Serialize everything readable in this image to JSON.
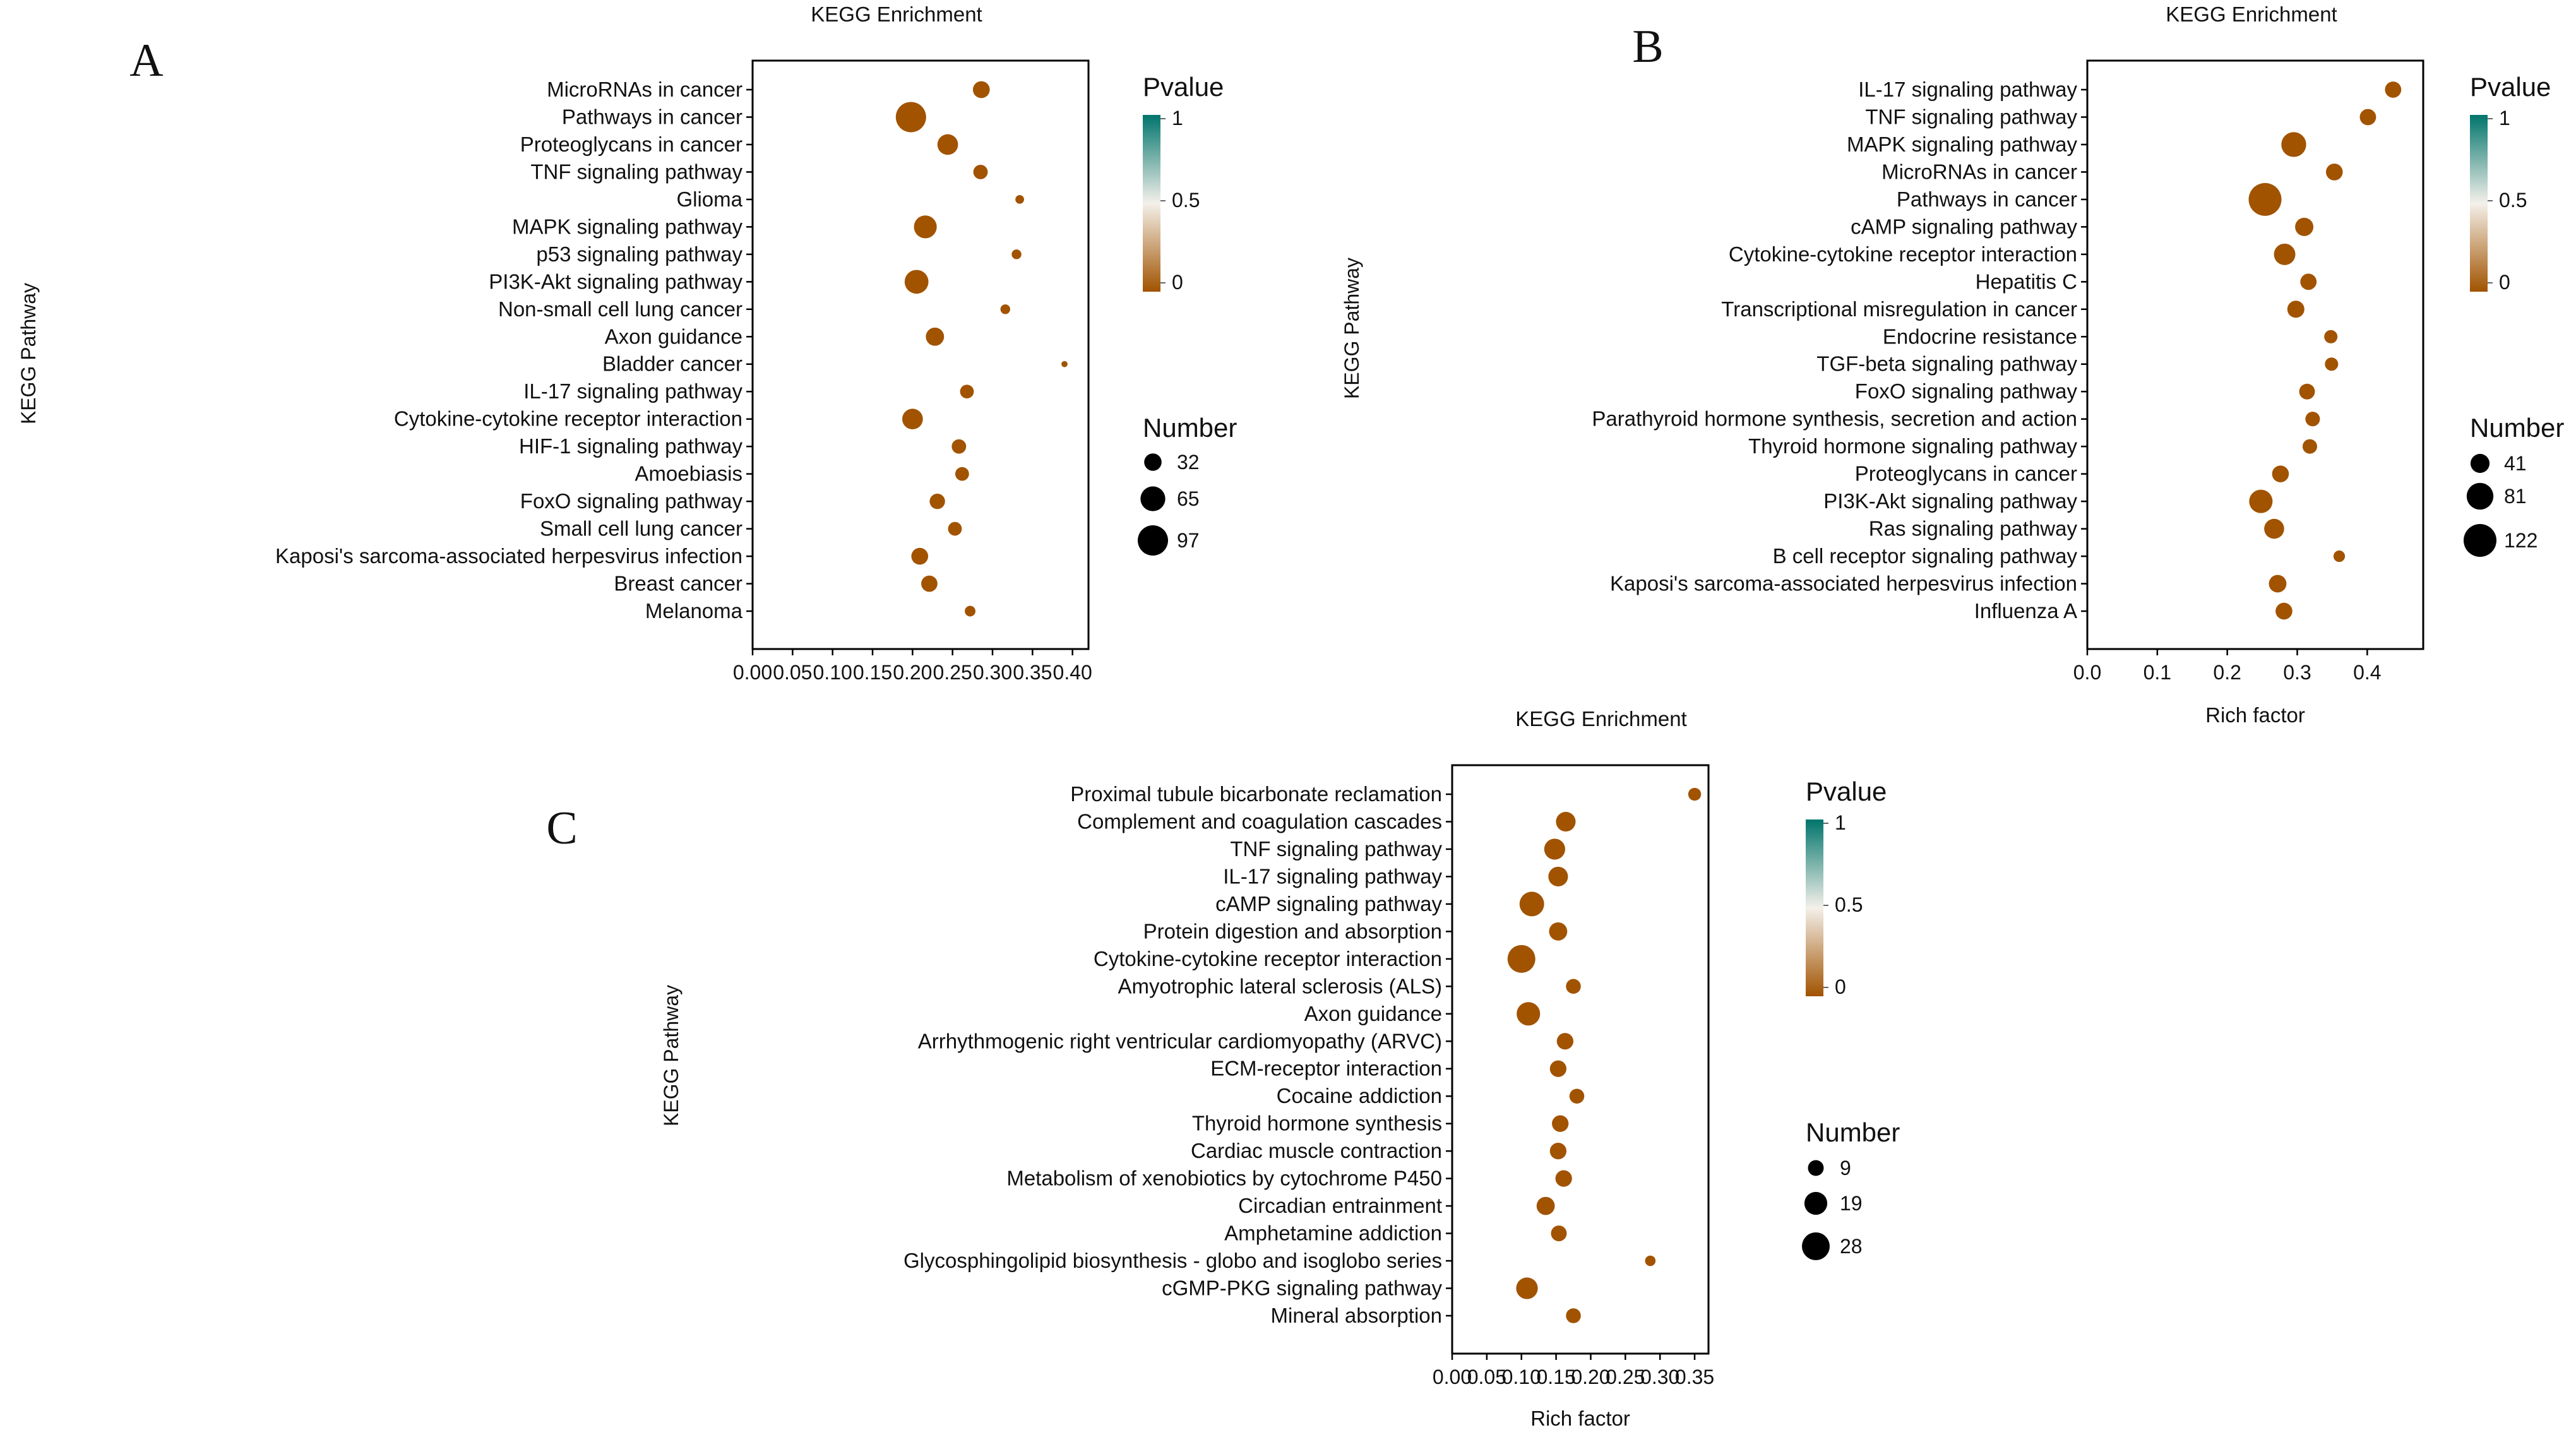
{
  "colors": {
    "low": "#a15300",
    "mid": "#f4f0ea",
    "high": "#00756c",
    "axis": "#000000"
  },
  "chart_data": [
    {
      "id": "A",
      "type": "scatter",
      "panel_label": "A",
      "title": "KEGG Enrichment",
      "xlabel": "",
      "ylabel": "KEGG Pathway",
      "xlim": [
        0,
        0.42
      ],
      "xticks": [
        0.0,
        0.05,
        0.1,
        0.15,
        0.2,
        0.25,
        0.3,
        0.35,
        0.4
      ],
      "xtick_labels": [
        "0.00",
        "0.05",
        "0.10",
        "0.15",
        "0.20",
        "0.25",
        "0.30",
        "0.35",
        "0.40"
      ],
      "categories": [
        "MicroRNAs in cancer",
        "Pathways in cancer",
        "Proteoglycans in cancer",
        "TNF signaling pathway",
        "Glioma",
        "MAPK signaling pathway",
        "p53 signaling pathway",
        "PI3K-Akt signaling pathway",
        "Non-small cell lung cancer",
        "Axon guidance",
        "Bladder cancer",
        "IL-17 signaling pathway",
        "Cytokine-cytokine receptor interaction",
        "HIF-1 signaling pathway",
        "Amoebiasis",
        "FoxO signaling pathway",
        "Small cell lung cancer",
        "Kaposi's sarcoma-associated herpesvirus infection",
        "Breast cancer",
        "Melanoma"
      ],
      "rich_factor": [
        0.286,
        0.198,
        0.244,
        0.285,
        0.334,
        0.216,
        0.33,
        0.205,
        0.316,
        0.228,
        0.39,
        0.268,
        0.2,
        0.258,
        0.262,
        0.231,
        0.253,
        0.209,
        0.221,
        0.272
      ],
      "number": [
        30,
        97,
        45,
        22,
        8,
        55,
        10,
        60,
        10,
        35,
        4,
        20,
        45,
        22,
        20,
        25,
        20,
        30,
        28,
        12
      ],
      "pvalue": [
        0,
        0,
        0,
        0,
        0,
        0,
        0,
        0,
        0,
        0,
        0,
        0,
        0,
        0,
        0,
        0,
        0,
        0,
        0,
        0
      ],
      "legend": {
        "color_title": "Pvalue",
        "color_ticks": [
          "1",
          "0.5",
          "0"
        ],
        "size_title": "Number",
        "size_values": [
          32,
          65,
          97
        ],
        "size_labels": [
          "32",
          "65",
          "97"
        ]
      }
    },
    {
      "id": "B",
      "type": "scatter",
      "panel_label": "B",
      "title": "KEGG Enrichment",
      "xlabel": "Rich factor",
      "ylabel": "KEGG Pathway",
      "xlim": [
        0,
        0.48
      ],
      "xticks": [
        0.0,
        0.1,
        0.2,
        0.3,
        0.4
      ],
      "xtick_labels": [
        "0.0",
        "0.1",
        "0.2",
        "0.3",
        "0.4"
      ],
      "categories": [
        "IL-17 signaling pathway",
        "TNF signaling pathway",
        "MAPK signaling pathway",
        "MicroRNAs in cancer",
        "Pathways in cancer",
        "cAMP signaling pathway",
        "Cytokine-cytokine receptor interaction",
        "Hepatitis C",
        "Transcriptional misregulation in cancer",
        "Endocrine resistance",
        "TGF-beta signaling pathway",
        "FoxO signaling pathway",
        "Parathyroid hormone synthesis, secretion and action",
        "Thyroid hormone signaling pathway",
        "Proteoglycans in cancer",
        "PI3K-Akt signaling pathway",
        "Ras signaling pathway",
        "B cell receptor signaling pathway",
        "Kaposi's sarcoma-associated herpesvirus infection",
        "Influenza A"
      ],
      "rich_factor": [
        0.437,
        0.401,
        0.295,
        0.353,
        0.254,
        0.31,
        0.282,
        0.316,
        0.298,
        0.348,
        0.349,
        0.314,
        0.322,
        0.318,
        0.276,
        0.248,
        0.267,
        0.36,
        0.272,
        0.281
      ],
      "number": [
        30,
        30,
        70,
        32,
        122,
        38,
        52,
        30,
        33,
        20,
        20,
        28,
        24,
        24,
        32,
        62,
        45,
        15,
        35,
        32
      ],
      "pvalue": [
        0,
        0,
        0,
        0,
        0,
        0,
        0,
        0,
        0,
        0,
        0,
        0,
        0,
        0,
        0,
        0,
        0,
        0,
        0,
        0
      ],
      "legend": {
        "color_title": "Pvalue",
        "color_ticks": [
          "1",
          "0.5",
          "0"
        ],
        "size_title": "Number",
        "size_values": [
          41,
          81,
          122
        ],
        "size_labels": [
          "41",
          "81",
          "122"
        ]
      }
    },
    {
      "id": "C",
      "type": "scatter",
      "panel_label": "C",
      "title": "KEGG Enrichment",
      "xlabel": "Rich factor",
      "ylabel": "KEGG Pathway",
      "xlim": [
        0,
        0.37
      ],
      "xticks": [
        0.0,
        0.05,
        0.1,
        0.15,
        0.2,
        0.25,
        0.3,
        0.35
      ],
      "xtick_labels": [
        "0.00",
        "0.05",
        "0.10",
        "0.15",
        "0.20",
        "0.25",
        "0.30",
        "0.35"
      ],
      "categories": [
        "Proximal tubule bicarbonate reclamation",
        "Complement and coagulation cascades",
        "TNF signaling pathway",
        "IL-17 signaling pathway",
        "cAMP signaling pathway",
        "Protein digestion and absorption",
        "Cytokine-cytokine receptor interaction",
        "Amyotrophic lateral sclerosis (ALS)",
        "Axon guidance",
        "Arrhythmogenic right ventricular cardiomyopathy (ARVC)",
        "ECM-receptor interaction",
        "Cocaine addiction",
        "Thyroid hormone synthesis",
        "Cardiac muscle contraction",
        "Metabolism of xenobiotics by cytochrome P450",
        "Circadian entrainment",
        "Amphetamine addiction",
        "Glycosphingolipid biosynthesis - globo and isoglobo series",
        "cGMP-PKG signaling pathway",
        "Mineral absorption"
      ],
      "rich_factor": [
        0.35,
        0.164,
        0.148,
        0.153,
        0.115,
        0.153,
        0.1,
        0.175,
        0.11,
        0.163,
        0.153,
        0.18,
        0.156,
        0.153,
        0.161,
        0.135,
        0.154,
        0.286,
        0.108,
        0.175
      ],
      "number": [
        6,
        14,
        16,
        14,
        22,
        12,
        28,
        8,
        20,
        10,
        10,
        8,
        10,
        10,
        10,
        12,
        9,
        4,
        17,
        8
      ],
      "pvalue": [
        0,
        0,
        0,
        0,
        0,
        0,
        0,
        0,
        0,
        0,
        0,
        0,
        0,
        0,
        0,
        0,
        0,
        0,
        0,
        0
      ],
      "legend": {
        "color_title": "Pvalue",
        "color_ticks": [
          "1",
          "0.5",
          "0"
        ],
        "size_title": "Number",
        "size_values": [
          9,
          19,
          28
        ],
        "size_labels": [
          "9",
          "19",
          "28"
        ]
      }
    }
  ]
}
